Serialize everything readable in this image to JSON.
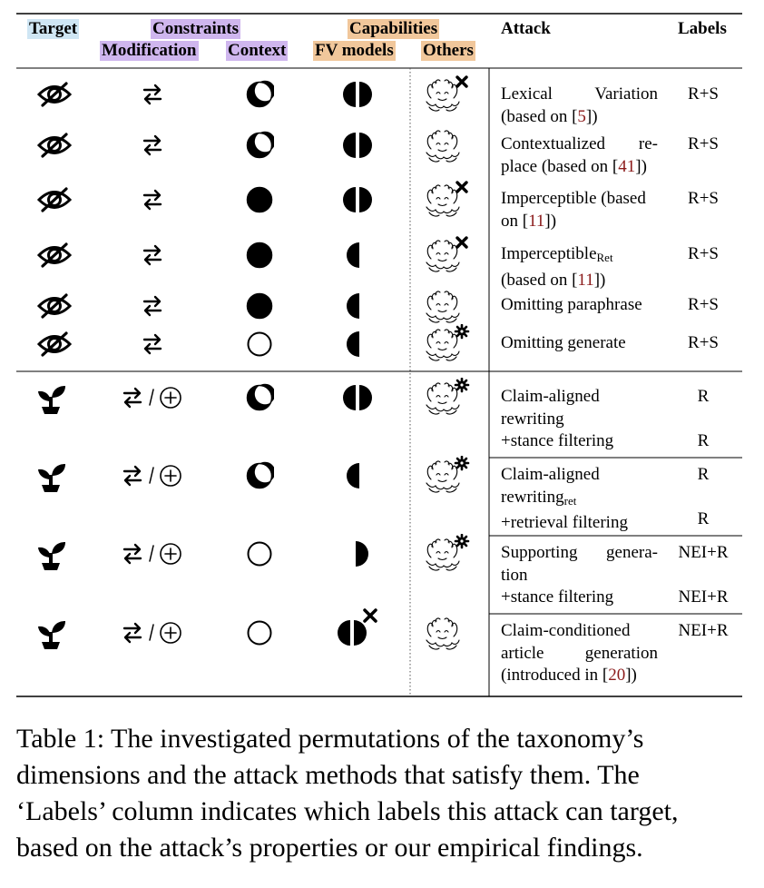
{
  "header": {
    "target": "Target",
    "constraints": "Constraints",
    "modification": "Modification",
    "context": "Context",
    "capabilities": "Capabilities",
    "fv_models": "FV models",
    "others": "Others",
    "attack": "Attack",
    "labels": "Labels"
  },
  "rows": [
    {
      "target_icon": "eye-slash-icon",
      "mod_icon": "swap-arrows-icon",
      "context_icon": "moon-circle-icon",
      "fv_icon": "split-circle-icon",
      "others_icon": "hands-cross-icon",
      "attack": [
        "Lexical Variation",
        "(based on [5])"
      ],
      "labels": "R+S"
    },
    {
      "target_icon": "eye-slash-icon",
      "mod_icon": "swap-arrows-icon",
      "context_icon": "moon-circle-icon",
      "fv_icon": "split-circle-icon",
      "others_icon": "hands-icon",
      "attack": [
        "Contextualized re-",
        "place (based on [41])"
      ],
      "labels": "R+S"
    },
    {
      "target_icon": "eye-slash-icon",
      "mod_icon": "swap-arrows-icon",
      "context_icon": "filled-circle-icon",
      "fv_icon": "split-circle-icon",
      "others_icon": "hands-cross-icon",
      "attack": [
        "Imperceptible (based",
        "on [11])"
      ],
      "labels": "R+S"
    },
    {
      "target_icon": "eye-slash-icon",
      "mod_icon": "swap-arrows-icon",
      "context_icon": "filled-circle-icon",
      "fv_icon": "left-half-icon",
      "others_icon": "hands-cross-icon",
      "attack": [
        "Imperceptible",
        "(based on [11])"
      ],
      "attack_sub": "Ret",
      "labels": "R+S"
    },
    {
      "target_icon": "eye-slash-icon",
      "mod_icon": "swap-arrows-icon",
      "context_icon": "filled-circle-icon",
      "fv_icon": "left-half-icon",
      "others_icon": "hands-icon",
      "attack": [
        "Omitting paraphrase"
      ],
      "labels": "R+S"
    },
    {
      "target_icon": "eye-slash-icon",
      "mod_icon": "swap-arrows-icon",
      "context_icon": "empty-circle-icon",
      "fv_icon": "left-half-icon",
      "others_icon": "hands-gear-icon",
      "attack": [
        "Omitting generate"
      ],
      "labels": "R+S"
    },
    {
      "target_icon": "sprout-icon",
      "mod_icon": "swap-plus-icon",
      "context_icon": "moon-circle-icon",
      "fv_icon": "split-circle-icon",
      "others_icon": "hands-gear-icon",
      "attack": [
        "Claim-aligned",
        "rewriting",
        "+stance filtering"
      ],
      "labels_lines": [
        "R",
        "",
        "R"
      ]
    },
    {
      "target_icon": "sprout-icon",
      "mod_icon": "swap-plus-icon",
      "context_icon": "moon-circle-icon",
      "fv_icon": "left-half-icon",
      "others_icon": "hands-gear-icon",
      "attack": [
        "Claim-aligned",
        "rewriting",
        "+retrieval filtering"
      ],
      "attack_sub": "ret",
      "labels_lines": [
        "R",
        "",
        "R"
      ]
    },
    {
      "target_icon": "sprout-icon",
      "mod_icon": "swap-plus-icon",
      "context_icon": "empty-circle-icon",
      "fv_icon": "right-half-icon",
      "others_icon": "hands-gear-icon",
      "attack": [
        "Supporting genera-",
        "tion",
        "+stance filtering"
      ],
      "labels_lines": [
        "NEI+R",
        "",
        "NEI+R"
      ]
    },
    {
      "target_icon": "sprout-icon",
      "mod_icon": "swap-plus-icon",
      "context_icon": "empty-circle-icon",
      "fv_icon": "split-circle-cross-icon",
      "others_icon": "hands-icon",
      "attack": [
        "Claim-conditioned",
        "article generation",
        "(introduced in [20])"
      ],
      "labels": "NEI+R"
    }
  ],
  "caption": [
    "Table 1: The investigated permutations of the taxonomy’s",
    "dimensions and the attack methods that satisfy them. The",
    "‘Labels’ column indicates which labels this attack can target,",
    "based on the attack’s properties or our empirical findings."
  ],
  "colors": {
    "target_highlight": "#cfe6f4",
    "constraints_highlight": "#cfb6ee",
    "capabilities_highlight": "#f1c79b",
    "reference": "#8b1a1a"
  }
}
